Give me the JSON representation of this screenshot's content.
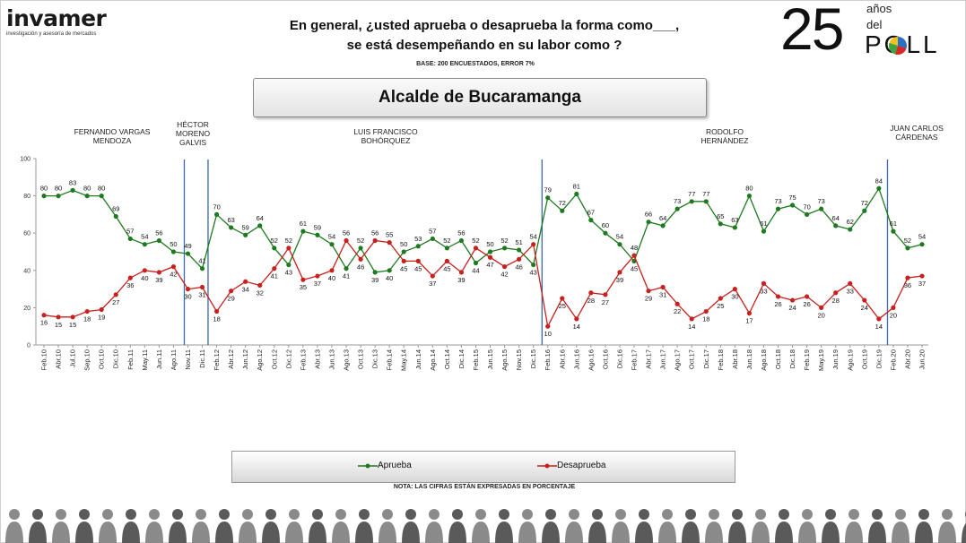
{
  "header": {
    "logo_text": "invamer",
    "logo_tagline": "investigación y asesoría de mercados",
    "question_line1": "En general, ¿usted aprueba o desaprueba la forma como___,",
    "question_line2": "se está desempeñando en su labor como ?",
    "base": "BASE: 200 ENCUESTADOS, ERROR 7%",
    "anniversary_number": "25",
    "anniversary_anos": "años",
    "anniversary_del": "del",
    "anniversary_poll": "POLL"
  },
  "title_box": "Alcalde de Bucaramanga",
  "note": "NOTA: LAS CIFRAS ESTÁN EXPRESADAS EN PORCENTAJE",
  "colors": {
    "aprueba": "#1e7a1e",
    "desaprueba": "#c8201c",
    "divider": "#3a6aa8"
  },
  "chart_data": {
    "type": "line",
    "ylim": [
      0,
      100
    ],
    "yticks": [
      0,
      20,
      40,
      60,
      80,
      100
    ],
    "categories": [
      "Feb.10",
      "Abr.10",
      "Jul.10",
      "Sep.10",
      "Oct.10",
      "Dic.10",
      "Feb.11",
      "May.11",
      "Jun.11",
      "Ago.11",
      "Nov.11",
      "Dic.11",
      "Feb.12",
      "Abr.12",
      "Jun.12",
      "Ago.12",
      "Oct.12",
      "Dic.12",
      "Feb.13",
      "Abr.13",
      "Jun.13",
      "Ago.13",
      "Oct.13",
      "Dic.13",
      "Feb.14",
      "May.14",
      "Jun.14",
      "Ago.14",
      "Oct.14",
      "Dic.14",
      "Feb.15",
      "Jun.15",
      "Ago.15",
      "Nov.15",
      "Dic.15",
      "Feb.16",
      "Abr.16",
      "Jun.16",
      "Ago.16",
      "Oct.16",
      "Dic.16",
      "Feb.17",
      "Abr.17",
      "Jun.17",
      "Ago.17",
      "Oct.17",
      "Dic.17",
      "Feb.18",
      "Abr.18",
      "Jun.18",
      "Ago.18",
      "Oct.18",
      "Dic.18",
      "Feb.19",
      "May.19",
      "Jun.19",
      "Ago.19",
      "Oct.19",
      "Dic.19",
      "Feb.20",
      "Abr.20",
      "Jun.20"
    ],
    "series": [
      {
        "name": "Aprueba",
        "values": [
          80,
          80,
          83,
          80,
          80,
          69,
          57,
          54,
          56,
          50,
          49,
          41,
          70,
          63,
          59,
          64,
          52,
          43,
          61,
          59,
          54,
          41,
          52,
          39,
          40,
          50,
          53,
          57,
          52,
          56,
          44,
          50,
          52,
          51,
          43,
          79,
          72,
          81,
          67,
          60,
          54,
          45,
          66,
          64,
          73,
          77,
          77,
          65,
          63,
          80,
          61,
          73,
          75,
          70,
          73,
          64,
          62,
          72,
          84,
          61,
          52,
          54
        ]
      },
      {
        "name": "Desaprueba",
        "values": [
          16,
          15,
          15,
          18,
          19,
          27,
          36,
          40,
          39,
          42,
          30,
          31,
          18,
          29,
          34,
          32,
          41,
          52,
          35,
          37,
          40,
          56,
          46,
          56,
          55,
          45,
          45,
          37,
          45,
          39,
          52,
          47,
          42,
          46,
          54,
          10,
          25,
          14,
          28,
          27,
          39,
          48,
          29,
          31,
          22,
          14,
          18,
          25,
          30,
          17,
          33,
          26,
          24,
          26,
          20,
          28,
          33,
          24,
          14,
          20,
          36,
          37
        ]
      }
    ],
    "periods": [
      {
        "label": [
          "FERNANDO VARGAS",
          "MENDOZA"
        ]
      },
      {
        "label": [
          "HÉCTOR",
          "MORENO",
          "GALVIS"
        ]
      },
      {
        "label": [
          "LUIS FRANCISCO",
          "BOHÓRQUEZ"
        ]
      },
      {
        "label": [
          "RODOLFO",
          "HERNÁNDEZ"
        ]
      },
      {
        "label": [
          "JUAN CARLOS",
          "CÁRDENAS"
        ]
      }
    ],
    "legend": [
      "Aprueba",
      "Desaprueba"
    ]
  }
}
